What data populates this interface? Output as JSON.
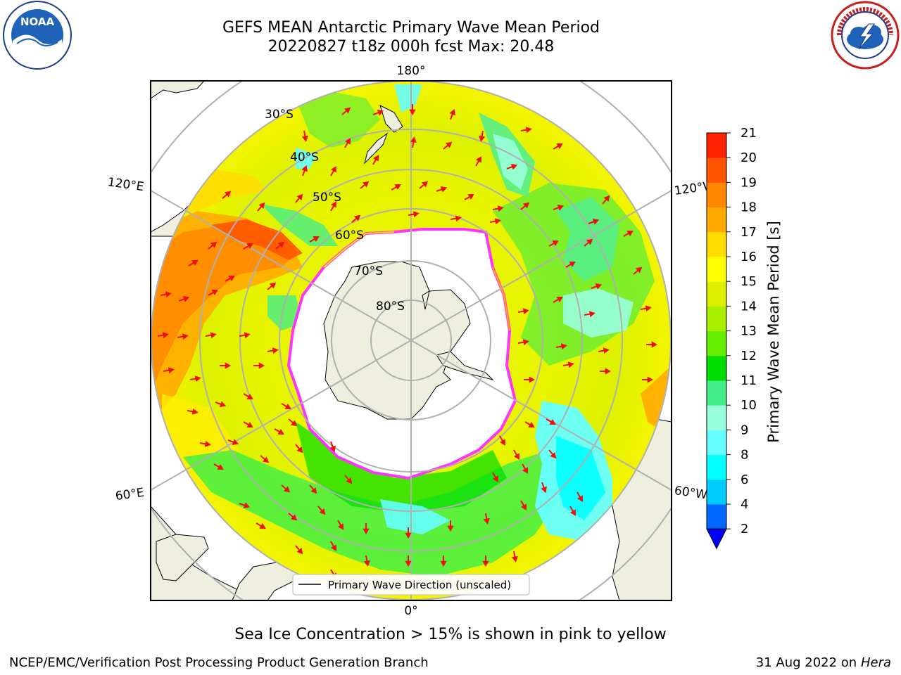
{
  "title": {
    "line1": "GEFS MEAN Antarctic Primary Wave Mean Period",
    "line2": "20220827 t18z 000h fcst   Max: 20.48"
  },
  "logos": {
    "left_text": "NOAA",
    "right_text": "NATIONAL WEATHER SERVICE"
  },
  "map": {
    "lon_labels": {
      "top": "180°",
      "bottom": "0°",
      "left_upper": "120°E",
      "left_lower": "60°E",
      "right_upper": "120°W",
      "right_lower": "60°W"
    },
    "lat_labels": [
      "30°S",
      "40°S",
      "50°S",
      "60°S",
      "70°S",
      "80°S"
    ],
    "legend": "Primary Wave Direction (unscaled)",
    "colors": {
      "land": "#efefdf",
      "ice": "#ffffff",
      "arrow": "#ee1111",
      "ice_edge": "#ff33ff"
    }
  },
  "colorbar": {
    "label": "Primary Wave Mean Period [s]",
    "ticks": [
      "2",
      "4",
      "6",
      "8",
      "9",
      "10",
      "11",
      "12",
      "13",
      "14",
      "15",
      "16",
      "17",
      "18",
      "19",
      "20",
      "21"
    ],
    "colors": [
      "#0066ff",
      "#00ccff",
      "#00ffff",
      "#66ffff",
      "#99ffdd",
      "#44ee88",
      "#00dd00",
      "#66ee00",
      "#aaee00",
      "#ddf000",
      "#ffff00",
      "#ffdd00",
      "#ffaa00",
      "#ff8800",
      "#ff5500",
      "#ff2200"
    ],
    "under_color": "#0000ff"
  },
  "footer": {
    "note": "Sea Ice Concentration > 15% is shown in pink to yellow",
    "left": "NCEP/EMC/Verification Post Processing Product Generation Branch",
    "date": "31 Aug 2022 on",
    "host": "Hera"
  }
}
